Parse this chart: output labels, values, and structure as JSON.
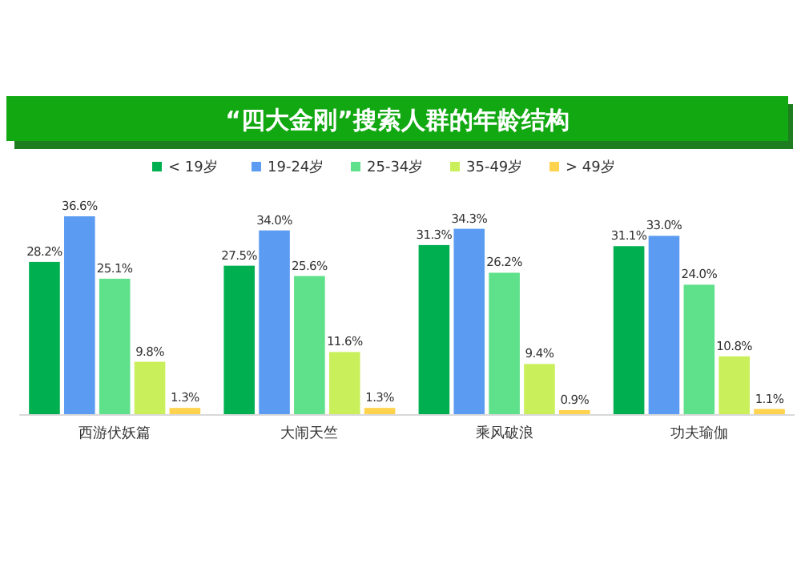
{
  "chart_data": {
    "type": "bar",
    "title": "“四大金刚”搜索人群的年龄结构",
    "categories": [
      "西游伏妖篇",
      "大闹天竺",
      "乘风破浪",
      "功夫瑜伽"
    ],
    "legend": "top",
    "series": [
      {
        "name": "< 19岁",
        "color": "#00b050",
        "values": [
          28.2,
          27.5,
          31.3,
          31.1
        ],
        "value_labels": [
          "28.2%",
          "27.5%",
          "31.3%",
          "31.1%"
        ]
      },
      {
        "name": "19-24岁",
        "color": "#5b9cf2",
        "values": [
          36.6,
          34.0,
          34.3,
          33.0
        ],
        "value_labels": [
          "36.6%",
          "34.0%",
          "34.3%",
          "33.0%"
        ]
      },
      {
        "name": "25-34岁",
        "color": "#5fe08a",
        "values": [
          25.1,
          25.6,
          26.2,
          24.0
        ],
        "value_labels": [
          "25.1%",
          "25.6%",
          "26.2%",
          "24.0%"
        ]
      },
      {
        "name": "35-49岁",
        "color": "#c9f05a",
        "values": [
          9.8,
          11.6,
          9.4,
          10.8
        ],
        "value_labels": [
          "9.8%",
          "11.6%",
          "9.4%",
          "10.8%"
        ]
      },
      {
        "name": "> 49岁",
        "color": "#ffd34d",
        "values": [
          1.3,
          1.3,
          0.9,
          1.1
        ],
        "value_labels": [
          "1.3%",
          "1.3%",
          "0.9%",
          "1.1%"
        ]
      }
    ]
  }
}
